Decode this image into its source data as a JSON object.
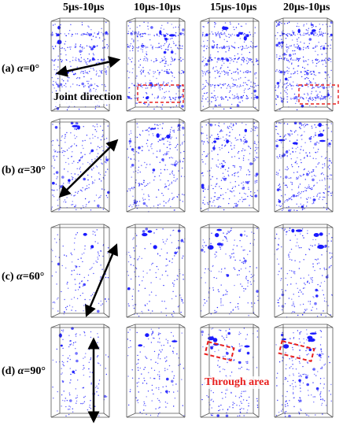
{
  "columns": [
    "5μs-10μs",
    "10μs-10μs",
    "15μs-10μs",
    "20μs-10μs"
  ],
  "rows": [
    {
      "prefix": "(a) ",
      "alpha": "α",
      "suffix": "=0°"
    },
    {
      "prefix": "(b) ",
      "alpha": "α",
      "suffix": "=30°"
    },
    {
      "prefix": "(c) ",
      "alpha": "α",
      "suffix": "=60°"
    },
    {
      "prefix": "(d) ",
      "alpha": "α",
      "suffix": "=90°"
    }
  ],
  "annotations": {
    "joint_direction": "Joint direction",
    "through_area": "Through area"
  },
  "colors": {
    "crack_points": "#1a1aff",
    "highlight": "#e8201f",
    "frame": "#555555"
  },
  "joint_angles_deg": [
    0,
    30,
    60,
    90
  ]
}
